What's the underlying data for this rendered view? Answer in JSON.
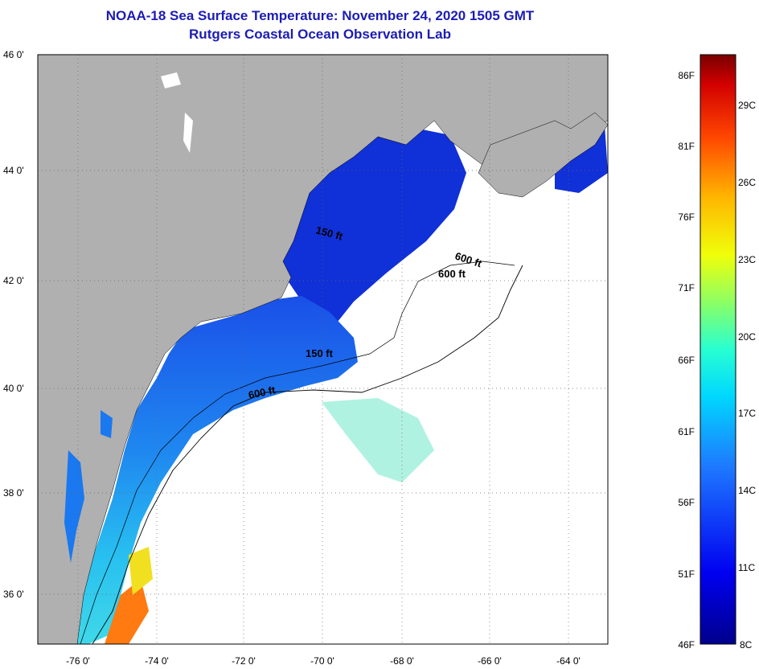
{
  "title": "NOAA-18 Sea Surface Temperature:  November 24, 2020 1505 GMT",
  "subtitle": "Rutgers Coastal Ocean Observation Lab",
  "map": {
    "lat_labels": [
      "46 0'",
      "44 0'",
      "42 0'",
      "40 0'",
      "38 0'",
      "36 0'"
    ],
    "lon_labels": [
      "-76 0'",
      "-74 0'",
      "-72 0'",
      "-70 0'",
      "-68 0'",
      "-66 0'",
      "-64 0'"
    ],
    "contours": [
      "600 ft",
      "600 ft",
      "150 ft",
      "600 ft",
      "150 ft"
    ]
  },
  "colorbar": {
    "fahrenheit": [
      "86F",
      "81F",
      "76F",
      "71F",
      "66F",
      "61F",
      "56F",
      "51F",
      "46F"
    ],
    "celsius": [
      "29C",
      "26C",
      "23C",
      "20C",
      "17C",
      "14C",
      "11C",
      "8C"
    ]
  },
  "colors": {
    "land": "#b0b0b0",
    "title": "#1c1cb4"
  }
}
